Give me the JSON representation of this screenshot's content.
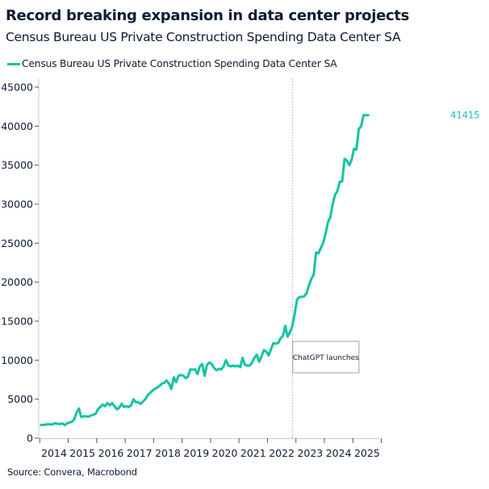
{
  "chart_data": {
    "type": "line",
    "title": "Record breaking expansion in data center projects",
    "subtitle": "Census Bureau US Private Construction Spending Data Center SA",
    "legend": "top-left",
    "grid": false,
    "x_start": "2014-01",
    "x_frequency": "monthly",
    "x_tick_labels": [
      "2014",
      "2015",
      "2016",
      "2017",
      "2018",
      "2019",
      "2020",
      "2021",
      "2022",
      "2023",
      "2024",
      "2025"
    ],
    "y_ticks": [
      0,
      5000,
      10000,
      15000,
      20000,
      25000,
      30000,
      35000,
      40000,
      45000
    ],
    "ylim": [
      0,
      45000
    ],
    "series": [
      {
        "name": "Census Bureau US Private Construction Spending Data Center SA",
        "color": "#13c4a3",
        "last_value_label": "41415",
        "values": [
          1700,
          1700,
          1750,
          1800,
          1750,
          1800,
          1900,
          1850,
          1800,
          1900,
          1650,
          1900,
          2000,
          2100,
          2400,
          3300,
          3800,
          2700,
          2800,
          2800,
          2750,
          2900,
          3000,
          3100,
          3700,
          4000,
          4300,
          4100,
          4500,
          4200,
          4500,
          4100,
          3700,
          3900,
          4400,
          4000,
          4100,
          4000,
          4200,
          5000,
          4600,
          4600,
          4400,
          4700,
          5000,
          5500,
          5800,
          6100,
          6300,
          6500,
          6700,
          7000,
          7100,
          7400,
          7000,
          6300,
          7800,
          7200,
          8000,
          8100,
          8000,
          7700,
          7900,
          8800,
          8800,
          8800,
          8200,
          9200,
          9500,
          8000,
          9400,
          9700,
          9500,
          9000,
          8700,
          8900,
          8800,
          9200,
          10000,
          9300,
          9200,
          9300,
          9200,
          9300,
          9100,
          10300,
          9400,
          9300,
          9300,
          9700,
          10300,
          10700,
          9800,
          10500,
          11300,
          11100,
          10600,
          11400,
          12200,
          12100,
          12200,
          12800,
          13100,
          14400,
          13000,
          13600,
          14400,
          16000,
          17800,
          18100,
          18100,
          18200,
          18600,
          19600,
          20400,
          21000,
          23800,
          23700,
          24400,
          25000,
          26200,
          27700,
          28300,
          30000,
          31200,
          31700,
          32900,
          32900,
          35800,
          35600,
          35000,
          35700,
          37100,
          37000,
          39600,
          40000,
          41400,
          41400,
          41415
        ]
      }
    ],
    "annotations": [
      {
        "type": "vertical-line",
        "x": "2022-11",
        "style": "dotted",
        "label": "ChatGPT launches"
      }
    ],
    "source": "Source: Convera, Macrobond"
  }
}
